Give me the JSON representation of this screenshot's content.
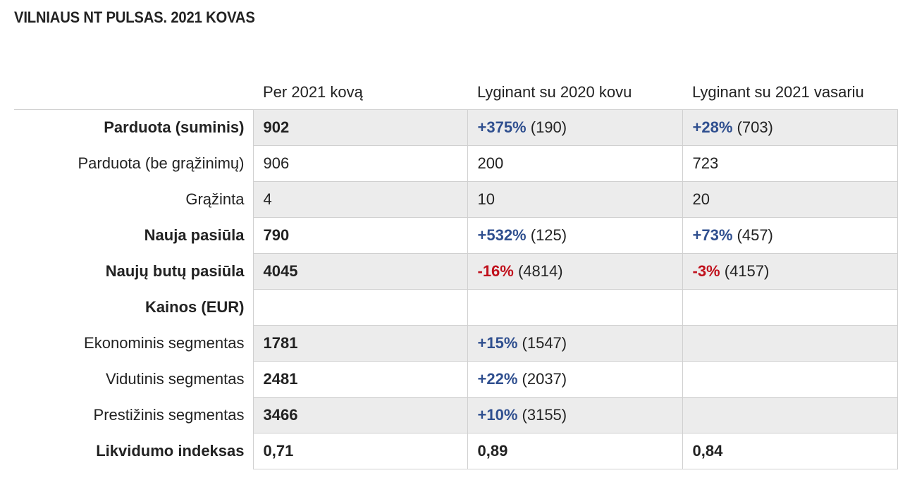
{
  "title": "VILNIAUS NT PULSAS. 2021 KOVAS",
  "colors": {
    "positive": "#2f4f8f",
    "negative": "#c0101c",
    "shade": "#ececec",
    "border": "#d0d0d0"
  },
  "table": {
    "headers": [
      "Per 2021 kovą",
      "Lyginant su 2020 kovu",
      "Lyginant su 2021 vasariu"
    ],
    "rows": [
      {
        "label": "Parduota (suminis)",
        "c1": "902",
        "c2_change": "+375%",
        "c2_ref": "(190)",
        "c3_change": "+28%",
        "c3_ref": "(703)"
      },
      {
        "label": "Parduota (be grąžinimų)",
        "c1": "906",
        "c2": "200",
        "c3": "723"
      },
      {
        "label": "Grąžinta",
        "c1": "4",
        "c2": "10",
        "c3": "20"
      },
      {
        "label": "Nauja pasiūla",
        "c1": "790",
        "c2_change": "+532%",
        "c2_ref": "(125)",
        "c3_change": "+73%",
        "c3_ref": "(457)"
      },
      {
        "label": "Naujų butų pasiūla",
        "c1": "4045",
        "c2_change": "-16%",
        "c2_ref": "(4814)",
        "c3_change": "-3%",
        "c3_ref": "(4157)"
      },
      {
        "label": "Kainos (EUR)"
      },
      {
        "label": "Ekonominis segmentas",
        "c1": "1781",
        "c2_change": "+15%",
        "c2_ref": "(1547)"
      },
      {
        "label": "Vidutinis segmentas",
        "c1": "2481",
        "c2_change": "+22%",
        "c2_ref": "(2037)"
      },
      {
        "label": "Prestižinis segmentas",
        "c1": "3466",
        "c2_change": "+10%",
        "c2_ref": "(3155)"
      },
      {
        "label": "Likvidumo indeksas",
        "c1": "0,71",
        "c2": "0,89",
        "c3": "0,84"
      }
    ]
  }
}
